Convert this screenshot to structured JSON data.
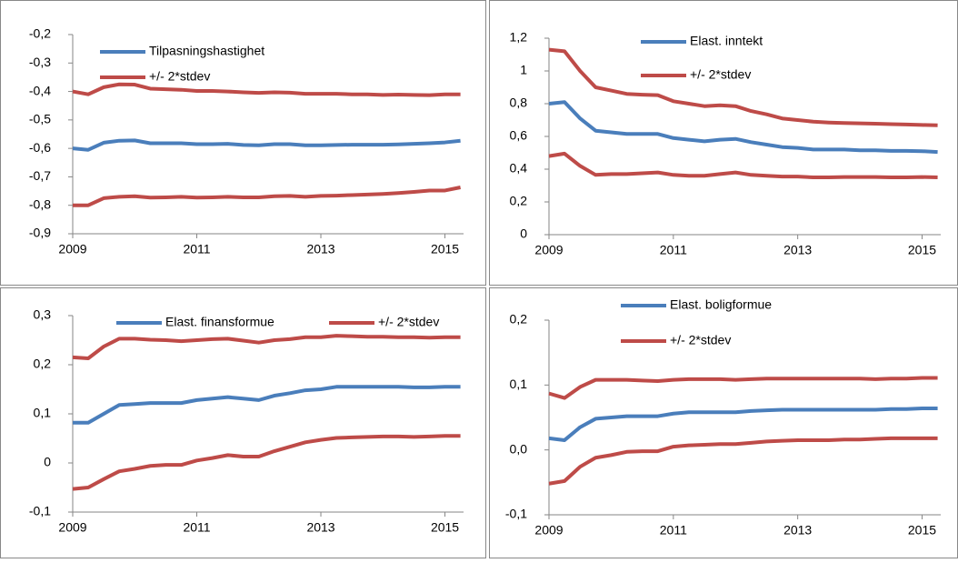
{
  "chart_data": [
    {
      "type": "line",
      "x": [
        2009,
        2009.25,
        2009.5,
        2009.75,
        2010,
        2010.25,
        2010.5,
        2010.75,
        2011,
        2011.25,
        2011.5,
        2011.75,
        2012,
        2012.25,
        2012.5,
        2012.75,
        2013,
        2013.25,
        2013.5,
        2013.75,
        2014,
        2014.25,
        2014.5,
        2014.75,
        2015,
        2015.25
      ],
      "xlim": [
        2009,
        2015.3
      ],
      "xticks": [
        2009,
        2011,
        2013,
        2015
      ],
      "ylim": [
        -0.9,
        -0.2
      ],
      "yticks": [
        {
          "value": -0.9,
          "label": "-0,9"
        },
        {
          "value": -0.8,
          "label": "-0,8"
        },
        {
          "value": -0.7,
          "label": "-0,7"
        },
        {
          "value": -0.6,
          "label": "-0,6"
        },
        {
          "value": -0.5,
          "label": "-0,5"
        },
        {
          "value": -0.4,
          "label": "-0,4"
        },
        {
          "value": -0.3,
          "label": "-0,3"
        },
        {
          "value": -0.2,
          "label": "-0,2"
        }
      ],
      "series": [
        {
          "name": "Tilpasningshastighet",
          "color": "#4a7ebb",
          "values": [
            -0.6,
            -0.605,
            -0.58,
            -0.573,
            -0.572,
            -0.582,
            -0.582,
            -0.582,
            -0.585,
            -0.585,
            -0.584,
            -0.588,
            -0.589,
            -0.585,
            -0.585,
            -0.589,
            -0.589,
            -0.588,
            -0.587,
            -0.587,
            -0.587,
            -0.586,
            -0.584,
            -0.582,
            -0.579,
            -0.573
          ]
        },
        {
          "name": "+/- 2*stdev",
          "color": "#be4b48",
          "values": [
            -0.4,
            -0.41,
            -0.385,
            -0.375,
            -0.376,
            -0.39,
            -0.392,
            -0.394,
            -0.398,
            -0.398,
            -0.4,
            -0.403,
            -0.405,
            -0.403,
            -0.404,
            -0.408,
            -0.408,
            -0.408,
            -0.41,
            -0.41,
            -0.412,
            -0.411,
            -0.412,
            -0.413,
            -0.41,
            -0.41
          ],
          "lower_values": [
            -0.8,
            -0.8,
            -0.775,
            -0.77,
            -0.768,
            -0.773,
            -0.772,
            -0.77,
            -0.773,
            -0.772,
            -0.77,
            -0.772,
            -0.772,
            -0.768,
            -0.767,
            -0.77,
            -0.767,
            -0.766,
            -0.764,
            -0.762,
            -0.76,
            -0.757,
            -0.753,
            -0.748,
            -0.748,
            -0.737
          ]
        }
      ]
    },
    {
      "type": "line",
      "x": [
        2009,
        2009.25,
        2009.5,
        2009.75,
        2010,
        2010.25,
        2010.5,
        2010.75,
        2011,
        2011.25,
        2011.5,
        2011.75,
        2012,
        2012.25,
        2012.5,
        2012.75,
        2013,
        2013.25,
        2013.5,
        2013.75,
        2014,
        2014.25,
        2014.5,
        2014.75,
        2015,
        2015.25
      ],
      "xlim": [
        2009,
        2015.3
      ],
      "xticks": [
        2009,
        2011,
        2013,
        2015
      ],
      "ylim": [
        0,
        1.2
      ],
      "yticks": [
        0,
        {
          "value": 0.2,
          "label": "0,2"
        },
        {
          "value": 0.4,
          "label": "0,4"
        },
        {
          "value": 0.6,
          "label": "0,6"
        },
        {
          "value": 0.8,
          "label": "0,8"
        },
        1,
        {
          "value": 1.2,
          "label": "1,2"
        }
      ],
      "series": [
        {
          "name": "Elast. inntekt",
          "color": "#4a7ebb",
          "values": [
            0.8,
            0.81,
            0.71,
            0.635,
            0.625,
            0.615,
            0.615,
            0.615,
            0.59,
            0.58,
            0.57,
            0.58,
            0.585,
            0.565,
            0.55,
            0.535,
            0.53,
            0.52,
            0.52,
            0.52,
            0.515,
            0.515,
            0.512,
            0.512,
            0.51,
            0.505
          ]
        },
        {
          "name": "+/- 2*stdev",
          "color": "#be4b48",
          "values": [
            1.13,
            1.12,
            1.0,
            0.9,
            0.88,
            0.86,
            0.855,
            0.852,
            0.815,
            0.8,
            0.785,
            0.79,
            0.785,
            0.755,
            0.735,
            0.71,
            0.7,
            0.69,
            0.685,
            0.682,
            0.68,
            0.678,
            0.675,
            0.673,
            0.67,
            0.668
          ],
          "lower_values": [
            0.48,
            0.495,
            0.42,
            0.365,
            0.37,
            0.37,
            0.375,
            0.38,
            0.365,
            0.36,
            0.36,
            0.37,
            0.38,
            0.365,
            0.36,
            0.355,
            0.355,
            0.35,
            0.35,
            0.352,
            0.352,
            0.352,
            0.35,
            0.35,
            0.352,
            0.35
          ]
        }
      ]
    },
    {
      "type": "line",
      "x": [
        2009,
        2009.25,
        2009.5,
        2009.75,
        2010,
        2010.25,
        2010.5,
        2010.75,
        2011,
        2011.25,
        2011.5,
        2011.75,
        2012,
        2012.25,
        2012.5,
        2012.75,
        2013,
        2013.25,
        2013.5,
        2013.75,
        2014,
        2014.25,
        2014.5,
        2014.75,
        2015,
        2015.25
      ],
      "xlim": [
        2009,
        2015.3
      ],
      "xticks": [
        2009,
        2011,
        2013,
        2015
      ],
      "ylim": [
        -0.1,
        0.3
      ],
      "yticks": [
        {
          "value": -0.1,
          "label": "-0,1"
        },
        0,
        {
          "value": 0.1,
          "label": "0,1"
        },
        {
          "value": 0.2,
          "label": "0,2"
        },
        {
          "value": 0.3,
          "label": "0,3"
        }
      ],
      "series": [
        {
          "name": "Elast. finansformue",
          "color": "#4a7ebb",
          "values": [
            0.082,
            0.082,
            0.1,
            0.118,
            0.12,
            0.122,
            0.122,
            0.122,
            0.128,
            0.131,
            0.134,
            0.131,
            0.128,
            0.137,
            0.142,
            0.148,
            0.15,
            0.155,
            0.155,
            0.155,
            0.155,
            0.155,
            0.154,
            0.154,
            0.155,
            0.155
          ]
        },
        {
          "name": "+/- 2*stdev",
          "color": "#be4b48",
          "values": [
            0.215,
            0.213,
            0.237,
            0.253,
            0.253,
            0.251,
            0.25,
            0.248,
            0.25,
            0.252,
            0.253,
            0.249,
            0.245,
            0.25,
            0.252,
            0.256,
            0.256,
            0.259,
            0.258,
            0.257,
            0.257,
            0.256,
            0.256,
            0.255,
            0.256,
            0.256
          ],
          "lower_values": [
            -0.053,
            -0.05,
            -0.033,
            -0.017,
            -0.012,
            -0.006,
            -0.004,
            -0.004,
            0.005,
            0.01,
            0.016,
            0.013,
            0.013,
            0.024,
            0.033,
            0.042,
            0.047,
            0.051,
            0.052,
            0.053,
            0.054,
            0.054,
            0.053,
            0.054,
            0.055,
            0.055
          ]
        }
      ]
    },
    {
      "type": "line",
      "x": [
        2009,
        2009.25,
        2009.5,
        2009.75,
        2010,
        2010.25,
        2010.5,
        2010.75,
        2011,
        2011.25,
        2011.5,
        2011.75,
        2012,
        2012.25,
        2012.5,
        2012.75,
        2013,
        2013.25,
        2013.5,
        2013.75,
        2014,
        2014.25,
        2014.5,
        2014.75,
        2015,
        2015.25
      ],
      "xlim": [
        2009,
        2015.3
      ],
      "xticks": [
        2009,
        2011,
        2013,
        2015
      ],
      "ylim": [
        -0.1,
        0.2
      ],
      "yticks": [
        {
          "value": -0.1,
          "label": "-0,1"
        },
        {
          "value": 0,
          "label": "0,0"
        },
        {
          "value": 0.1,
          "label": "0,1"
        },
        {
          "value": 0.2,
          "label": "0,2"
        }
      ],
      "series": [
        {
          "name": "Elast. boligformue",
          "color": "#4a7ebb",
          "values": [
            0.018,
            0.015,
            0.035,
            0.048,
            0.05,
            0.052,
            0.052,
            0.052,
            0.056,
            0.058,
            0.058,
            0.058,
            0.058,
            0.06,
            0.061,
            0.062,
            0.062,
            0.062,
            0.062,
            0.062,
            0.062,
            0.062,
            0.063,
            0.063,
            0.064,
            0.064
          ]
        },
        {
          "name": "+/- 2*stdev",
          "color": "#be4b48",
          "values": [
            0.087,
            0.08,
            0.097,
            0.108,
            0.108,
            0.108,
            0.107,
            0.106,
            0.108,
            0.109,
            0.109,
            0.109,
            0.108,
            0.109,
            0.11,
            0.11,
            0.11,
            0.11,
            0.11,
            0.11,
            0.11,
            0.109,
            0.11,
            0.11,
            0.111,
            0.111
          ],
          "lower_values": [
            -0.052,
            -0.048,
            -0.026,
            -0.012,
            -0.008,
            -0.003,
            -0.002,
            -0.002,
            0.005,
            0.007,
            0.008,
            0.009,
            0.009,
            0.011,
            0.013,
            0.014,
            0.015,
            0.015,
            0.015,
            0.016,
            0.016,
            0.017,
            0.018,
            0.018,
            0.018,
            0.018
          ]
        }
      ]
    }
  ]
}
